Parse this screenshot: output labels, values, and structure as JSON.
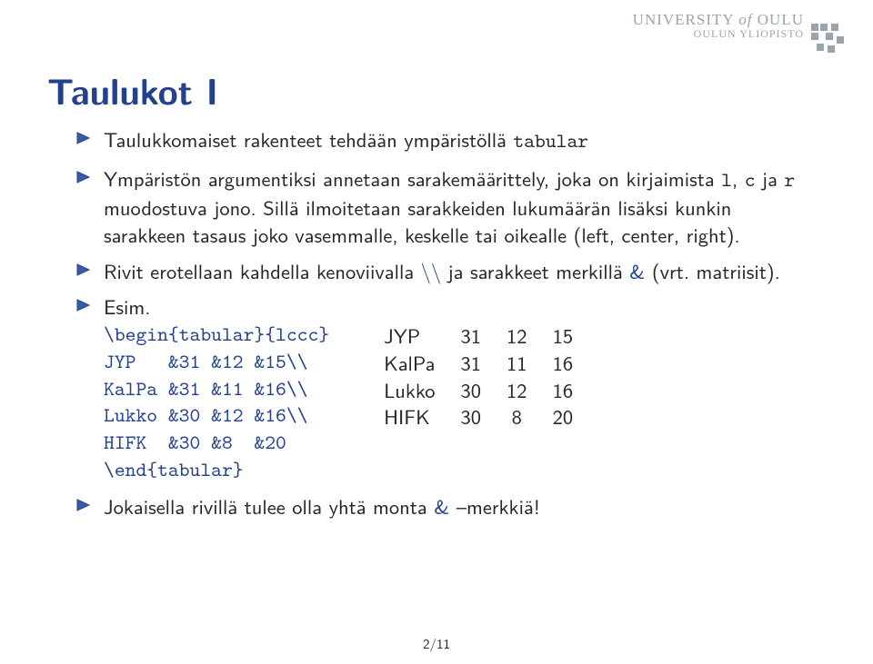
{
  "header": {
    "top_pre": "UNIVERSITY ",
    "top_em": "of",
    "top_post": " OULU",
    "sub": "OULUN YLIOPISTO",
    "icon_color": "#9aa4ab"
  },
  "colors": {
    "title": "#23418f",
    "text": "#262626",
    "header": "#9aa4ab",
    "bullet_fill": "#3a5aa8",
    "bullet_stroke": "#23418f"
  },
  "title": "Taulukot I",
  "bullets": [
    {
      "segments": [
        {
          "t": "Taulukkomaiset rakenteet tehdään ympäristöllä "
        },
        {
          "t": "tabular",
          "tt": true
        }
      ]
    },
    {
      "segments": [
        {
          "t": "Ympäristön argumentiksi annetaan sarakemäärittely, joka on kirjaimista "
        },
        {
          "t": "l",
          "tt": true
        },
        {
          "t": ", "
        },
        {
          "t": "c",
          "tt": true
        },
        {
          "t": " ja "
        },
        {
          "t": "r",
          "tt": true
        },
        {
          "t": " muodostuva jono. Sillä ilmoitetaan sarakkeiden lukumäärän lisäksi kunkin sarakkeen tasaus joko vasemmalle, keskelle tai oikealle (left, center, right)."
        }
      ]
    },
    {
      "segments": [
        {
          "t": "Rivit erotellaan kahdella kenoviivalla "
        },
        {
          "t": "\\\\",
          "blue": true
        },
        {
          "t": " ja sarakkeet merkillä "
        },
        {
          "t": "&",
          "blue": true
        },
        {
          "t": " (vrt. matriisit)."
        }
      ]
    },
    {
      "segments": [
        {
          "t": "Esim."
        }
      ],
      "code": {
        "lines": [
          "\\begin{tabular}{lccc}",
          "JYP   &31 &12 &15\\\\",
          "KalPa &31 &11 &16\\\\",
          "Lukko &30 &12 &16\\\\",
          "HIFK  &30 &8  &20",
          "\\end{tabular}"
        ]
      },
      "table": {
        "rows": [
          [
            "JYP",
            "31",
            "12",
            "15"
          ],
          [
            "KalPa",
            "31",
            "11",
            "16"
          ],
          [
            "Lukko",
            "30",
            "12",
            "16"
          ],
          [
            "HIFK",
            "30",
            "8",
            "20"
          ]
        ]
      }
    },
    {
      "segments": [
        {
          "t": "Jokaisella rivillä tulee olla yhtä monta "
        },
        {
          "t": "&",
          "blue": true
        },
        {
          "t": " –merkkiä!"
        }
      ]
    }
  ],
  "page": {
    "current": "2",
    "total": "11",
    "sep": "/"
  }
}
